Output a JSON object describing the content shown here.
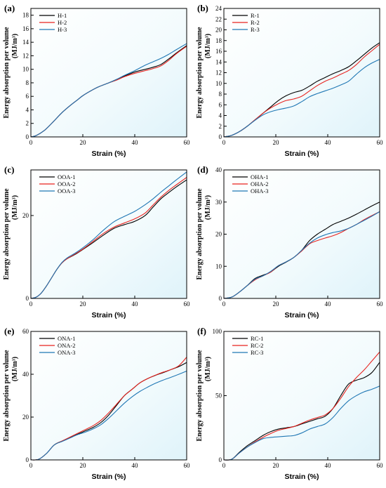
{
  "chart_data": [
    {
      "type": "line",
      "panel_label": "(a)",
      "xlabel": "Strain (%)",
      "ylabel": "Energy absorption per volume",
      "ylabel_unit": "(MJ/m³)",
      "xlim": [
        0,
        60
      ],
      "ylim": [
        0,
        19
      ],
      "xticks": [
        "0",
        "20",
        "40",
        "60"
      ],
      "yticks": [
        "0",
        "2",
        "4",
        "6",
        "8",
        "10",
        "12",
        "14",
        "16",
        "18"
      ],
      "legend_position": "top-left",
      "background": "light-blue-gradient",
      "series": [
        {
          "name": "H-1",
          "color": "#000000",
          "x": [
            0,
            2,
            5,
            8,
            10,
            12,
            15,
            18,
            20,
            23,
            26,
            30,
            33,
            36,
            40,
            44,
            47,
            50,
            53,
            56,
            60
          ],
          "y": [
            0,
            0.2,
            0.9,
            2.0,
            2.8,
            3.6,
            4.6,
            5.5,
            6.1,
            6.8,
            7.4,
            8.0,
            8.5,
            9.0,
            9.6,
            10.0,
            10.3,
            10.7,
            11.5,
            12.4,
            13.5
          ]
        },
        {
          "name": "H-2",
          "color": "#e8231f",
          "x": [
            0,
            2,
            5,
            8,
            10,
            12,
            15,
            18,
            20,
            23,
            26,
            30,
            33,
            36,
            40,
            44,
            47,
            50,
            53,
            56,
            60
          ],
          "y": [
            0,
            0.2,
            0.9,
            2.0,
            2.8,
            3.6,
            4.6,
            5.5,
            6.1,
            6.8,
            7.4,
            8.0,
            8.4,
            8.9,
            9.4,
            9.8,
            10.1,
            10.5,
            11.3,
            12.3,
            13.4
          ]
        },
        {
          "name": "H-3",
          "color": "#1f77b4",
          "x": [
            0,
            2,
            5,
            8,
            10,
            12,
            15,
            18,
            20,
            23,
            26,
            30,
            33,
            36,
            40,
            44,
            47,
            50,
            53,
            56,
            60
          ],
          "y": [
            0,
            0.2,
            0.9,
            2.0,
            2.8,
            3.6,
            4.6,
            5.5,
            6.1,
            6.8,
            7.4,
            8.0,
            8.5,
            9.1,
            9.8,
            10.6,
            11.1,
            11.6,
            12.2,
            12.9,
            13.8
          ]
        }
      ]
    },
    {
      "type": "line",
      "panel_label": "(b)",
      "xlabel": "Strain (%)",
      "ylabel": "Energy absorption per volume",
      "ylabel_unit": "(MJ/m³)",
      "xlim": [
        0,
        60
      ],
      "ylim": [
        0,
        24
      ],
      "xticks": [
        "0",
        "20",
        "40",
        "60"
      ],
      "yticks": [
        "0",
        "2",
        "4",
        "6",
        "8",
        "10",
        "12",
        "14",
        "16",
        "18",
        "20",
        "22",
        "24"
      ],
      "legend_position": "top-left",
      "background": "light-blue-gradient",
      "series": [
        {
          "name": "R-1",
          "color": "#000000",
          "x": [
            0,
            3,
            6,
            9,
            12,
            15,
            18,
            21,
            24,
            27,
            30,
            33,
            36,
            39,
            42,
            45,
            48,
            51,
            54,
            57,
            60
          ],
          "y": [
            0,
            0.3,
            1.0,
            2.0,
            3.2,
            4.4,
            5.6,
            6.8,
            7.7,
            8.3,
            8.7,
            9.5,
            10.4,
            11.1,
            11.8,
            12.4,
            13.1,
            14.2,
            15.4,
            16.6,
            17.6
          ]
        },
        {
          "name": "R-2",
          "color": "#e8231f",
          "x": [
            0,
            3,
            6,
            9,
            12,
            15,
            18,
            21,
            24,
            27,
            30,
            33,
            36,
            39,
            42,
            45,
            48,
            51,
            54,
            57,
            60
          ],
          "y": [
            0,
            0.3,
            1.0,
            2.0,
            3.2,
            4.4,
            5.4,
            6.2,
            6.8,
            7.1,
            7.6,
            8.6,
            9.6,
            10.4,
            11.0,
            11.7,
            12.4,
            13.5,
            14.9,
            16.1,
            17.3
          ]
        },
        {
          "name": "R-3",
          "color": "#1f77b4",
          "x": [
            0,
            3,
            6,
            9,
            12,
            15,
            18,
            21,
            24,
            27,
            30,
            33,
            36,
            39,
            42,
            45,
            48,
            51,
            54,
            57,
            60
          ],
          "y": [
            0,
            0.3,
            1.0,
            2.0,
            3.1,
            4.1,
            4.7,
            5.1,
            5.4,
            5.8,
            6.6,
            7.5,
            8.1,
            8.6,
            9.1,
            9.7,
            10.4,
            11.7,
            12.9,
            13.8,
            14.5
          ]
        }
      ]
    },
    {
      "type": "line",
      "panel_label": "(c)",
      "xlabel": "Strain (%)",
      "ylabel": "Energy absorption per volume",
      "ylabel_unit": "(MJ/m³)",
      "xlim": [
        0,
        60
      ],
      "ylim": [
        0,
        31
      ],
      "xticks": [
        "0",
        "20",
        "40",
        "60"
      ],
      "yticks": [
        "0",
        "20"
      ],
      "legend_position": "top-left",
      "background": "light-blue-gradient",
      "series": [
        {
          "name": "OOA-1",
          "color": "#000000",
          "x": [
            0,
            2,
            4,
            6,
            8,
            10,
            12,
            14,
            17,
            20,
            24,
            28,
            32,
            36,
            40,
            44,
            47,
            50,
            53,
            56,
            60
          ],
          "y": [
            0,
            0.3,
            1.3,
            3.0,
            5.0,
            7.0,
            8.6,
            9.6,
            10.6,
            11.8,
            13.5,
            15.3,
            16.9,
            17.8,
            18.6,
            20.0,
            22.0,
            24.0,
            25.5,
            26.9,
            28.6
          ]
        },
        {
          "name": "OOA-2",
          "color": "#e8231f",
          "x": [
            0,
            2,
            4,
            6,
            8,
            10,
            12,
            14,
            17,
            20,
            24,
            28,
            32,
            36,
            40,
            44,
            47,
            50,
            53,
            56,
            60
          ],
          "y": [
            0,
            0.3,
            1.3,
            3.0,
            5.0,
            7.0,
            8.6,
            9.6,
            10.7,
            11.9,
            13.8,
            15.7,
            17.2,
            18.2,
            19.2,
            20.6,
            22.5,
            24.4,
            26.0,
            27.4,
            29.2
          ]
        },
        {
          "name": "OOA-3",
          "color": "#1f77b4",
          "x": [
            0,
            2,
            4,
            6,
            8,
            10,
            12,
            14,
            17,
            20,
            24,
            28,
            32,
            36,
            40,
            44,
            47,
            50,
            53,
            56,
            60
          ],
          "y": [
            0,
            0.3,
            1.3,
            3.0,
            5.0,
            7.0,
            8.7,
            9.8,
            10.9,
            12.2,
            14.2,
            16.5,
            18.5,
            19.8,
            21.0,
            22.6,
            24.0,
            25.6,
            27.1,
            28.6,
            30.5
          ]
        }
      ]
    },
    {
      "type": "line",
      "panel_label": "(d)",
      "xlabel": "Strain (%)",
      "ylabel": "Energy absorption per volume",
      "ylabel_unit": "(MJ/m³)",
      "xlim": [
        0,
        60
      ],
      "ylim": [
        0,
        40
      ],
      "xticks": [
        "0",
        "20",
        "40",
        "60"
      ],
      "yticks": [
        "0",
        "10",
        "20",
        "30",
        "40"
      ],
      "legend_position": "top-left",
      "background": "light-blue-gradient",
      "series": [
        {
          "name": "OHA-1",
          "color": "#000000",
          "x": [
            0,
            3,
            6,
            9,
            12,
            15,
            18,
            21,
            24,
            27,
            30,
            33,
            36,
            39,
            42,
            45,
            48,
            51,
            54,
            57,
            60
          ],
          "y": [
            0,
            0.4,
            2.0,
            4.0,
            6.2,
            7.2,
            8.2,
            10.0,
            11.3,
            12.8,
            15.0,
            18.0,
            20.0,
            21.5,
            23.0,
            24.0,
            25.0,
            26.2,
            27.5,
            28.8,
            30.0
          ]
        },
        {
          "name": "OHA-2",
          "color": "#e8231f",
          "x": [
            0,
            3,
            6,
            9,
            12,
            15,
            18,
            21,
            24,
            27,
            30,
            33,
            36,
            39,
            42,
            45,
            48,
            51,
            54,
            57,
            60
          ],
          "y": [
            0,
            0.4,
            2.0,
            4.0,
            5.8,
            7.0,
            8.2,
            10.2,
            11.4,
            12.8,
            14.8,
            17.0,
            18.0,
            18.8,
            19.5,
            20.5,
            21.8,
            23.0,
            24.5,
            25.8,
            27.0
          ]
        },
        {
          "name": "OHA-3",
          "color": "#1f77b4",
          "x": [
            0,
            3,
            6,
            9,
            12,
            15,
            18,
            21,
            24,
            27,
            30,
            33,
            36,
            39,
            42,
            45,
            48,
            51,
            54,
            57,
            60
          ],
          "y": [
            0,
            0.4,
            2.0,
            4.0,
            6.0,
            7.0,
            8.4,
            10.2,
            11.4,
            12.8,
            15.0,
            17.2,
            18.8,
            19.8,
            20.5,
            21.0,
            21.8,
            23.0,
            24.3,
            25.6,
            27.0
          ]
        }
      ]
    },
    {
      "type": "line",
      "panel_label": "(e)",
      "xlabel": "Strain (%)",
      "ylabel": "Energy absorption per volume",
      "ylabel_unit": "(MJ/m³)",
      "xlim": [
        0,
        60
      ],
      "ylim": [
        0,
        60
      ],
      "xticks": [
        "0",
        "20",
        "40",
        "60"
      ],
      "yticks": [
        "0",
        "20",
        "40",
        "60"
      ],
      "legend_position": "top-left",
      "background": "light-blue-gradient",
      "series": [
        {
          "name": "ONA-1",
          "color": "#000000",
          "x": [
            0,
            3,
            6,
            9,
            12,
            15,
            18,
            21,
            24,
            27,
            30,
            33,
            36,
            39,
            42,
            45,
            48,
            51,
            54,
            57,
            60
          ],
          "y": [
            0,
            0.3,
            3.0,
            7.0,
            8.8,
            10.4,
            12.0,
            13.6,
            15.2,
            17.5,
            21.0,
            25.5,
            30.0,
            33.0,
            36.0,
            38.0,
            39.5,
            40.8,
            42.2,
            43.6,
            45.5
          ]
        },
        {
          "name": "ONA-2",
          "color": "#e8231f",
          "x": [
            0,
            3,
            6,
            9,
            12,
            15,
            18,
            21,
            24,
            27,
            30,
            33,
            36,
            39,
            42,
            45,
            48,
            51,
            54,
            57,
            60
          ],
          "y": [
            0,
            0.3,
            3.0,
            7.0,
            8.8,
            10.6,
            12.4,
            14.2,
            16.0,
            18.5,
            22.0,
            26.0,
            30.0,
            33.0,
            36.0,
            38.0,
            39.6,
            41.0,
            42.2,
            44.0,
            48.0
          ]
        },
        {
          "name": "ONA-3",
          "color": "#1f77b4",
          "x": [
            0,
            3,
            6,
            9,
            12,
            15,
            18,
            21,
            24,
            27,
            30,
            33,
            36,
            39,
            42,
            45,
            48,
            51,
            54,
            57,
            60
          ],
          "y": [
            0,
            0.3,
            3.0,
            7.0,
            8.6,
            10.2,
            11.8,
            13.0,
            14.5,
            16.5,
            19.5,
            23.0,
            26.5,
            29.5,
            32.0,
            34.0,
            35.8,
            37.3,
            38.6,
            40.0,
            41.5
          ]
        }
      ]
    },
    {
      "type": "line",
      "panel_label": "(f)",
      "xlabel": "Strain (%)",
      "ylabel": "Energy absorption per volume",
      "ylabel_unit": "(MJ/m³)",
      "xlim": [
        0,
        60
      ],
      "ylim": [
        0,
        100
      ],
      "xticks": [
        "0",
        "20",
        "40",
        "60"
      ],
      "yticks": [
        "0",
        "50",
        "100"
      ],
      "legend_position": "top-left",
      "background": "light-blue-gradient",
      "series": [
        {
          "name": "RC-1",
          "color": "#000000",
          "x": [
            0,
            3,
            6,
            9,
            12,
            15,
            18,
            21,
            24,
            27,
            30,
            33,
            36,
            39,
            42,
            45,
            48,
            51,
            54,
            57,
            60
          ],
          "y": [
            0,
            0.5,
            6.0,
            11.0,
            15.0,
            19.0,
            22.0,
            24.0,
            25.0,
            26.0,
            28.0,
            30.0,
            32.0,
            34.0,
            40.0,
            50.0,
            59.0,
            62.0,
            64.0,
            68.0,
            76.0
          ]
        },
        {
          "name": "RC-2",
          "color": "#e8231f",
          "x": [
            0,
            3,
            6,
            9,
            12,
            15,
            18,
            21,
            24,
            27,
            30,
            33,
            36,
            39,
            42,
            45,
            48,
            51,
            54,
            57,
            60
          ],
          "y": [
            0,
            0.5,
            5.5,
            10.0,
            14.0,
            17.5,
            20.5,
            23.0,
            24.5,
            26.0,
            28.5,
            31.0,
            33.0,
            35.0,
            40.0,
            48.0,
            57.0,
            64.0,
            70.0,
            77.0,
            84.0
          ]
        },
        {
          "name": "RC-3",
          "color": "#1f77b4",
          "x": [
            0,
            3,
            6,
            9,
            12,
            15,
            18,
            21,
            24,
            27,
            30,
            33,
            36,
            39,
            42,
            45,
            48,
            51,
            54,
            57,
            60
          ],
          "y": [
            0,
            0.5,
            5.5,
            10.0,
            13.5,
            16.5,
            17.5,
            18.0,
            18.5,
            19.0,
            21.0,
            24.0,
            26.0,
            28.0,
            33.0,
            40.0,
            46.0,
            50.0,
            53.0,
            55.0,
            57.5
          ]
        }
      ]
    }
  ]
}
